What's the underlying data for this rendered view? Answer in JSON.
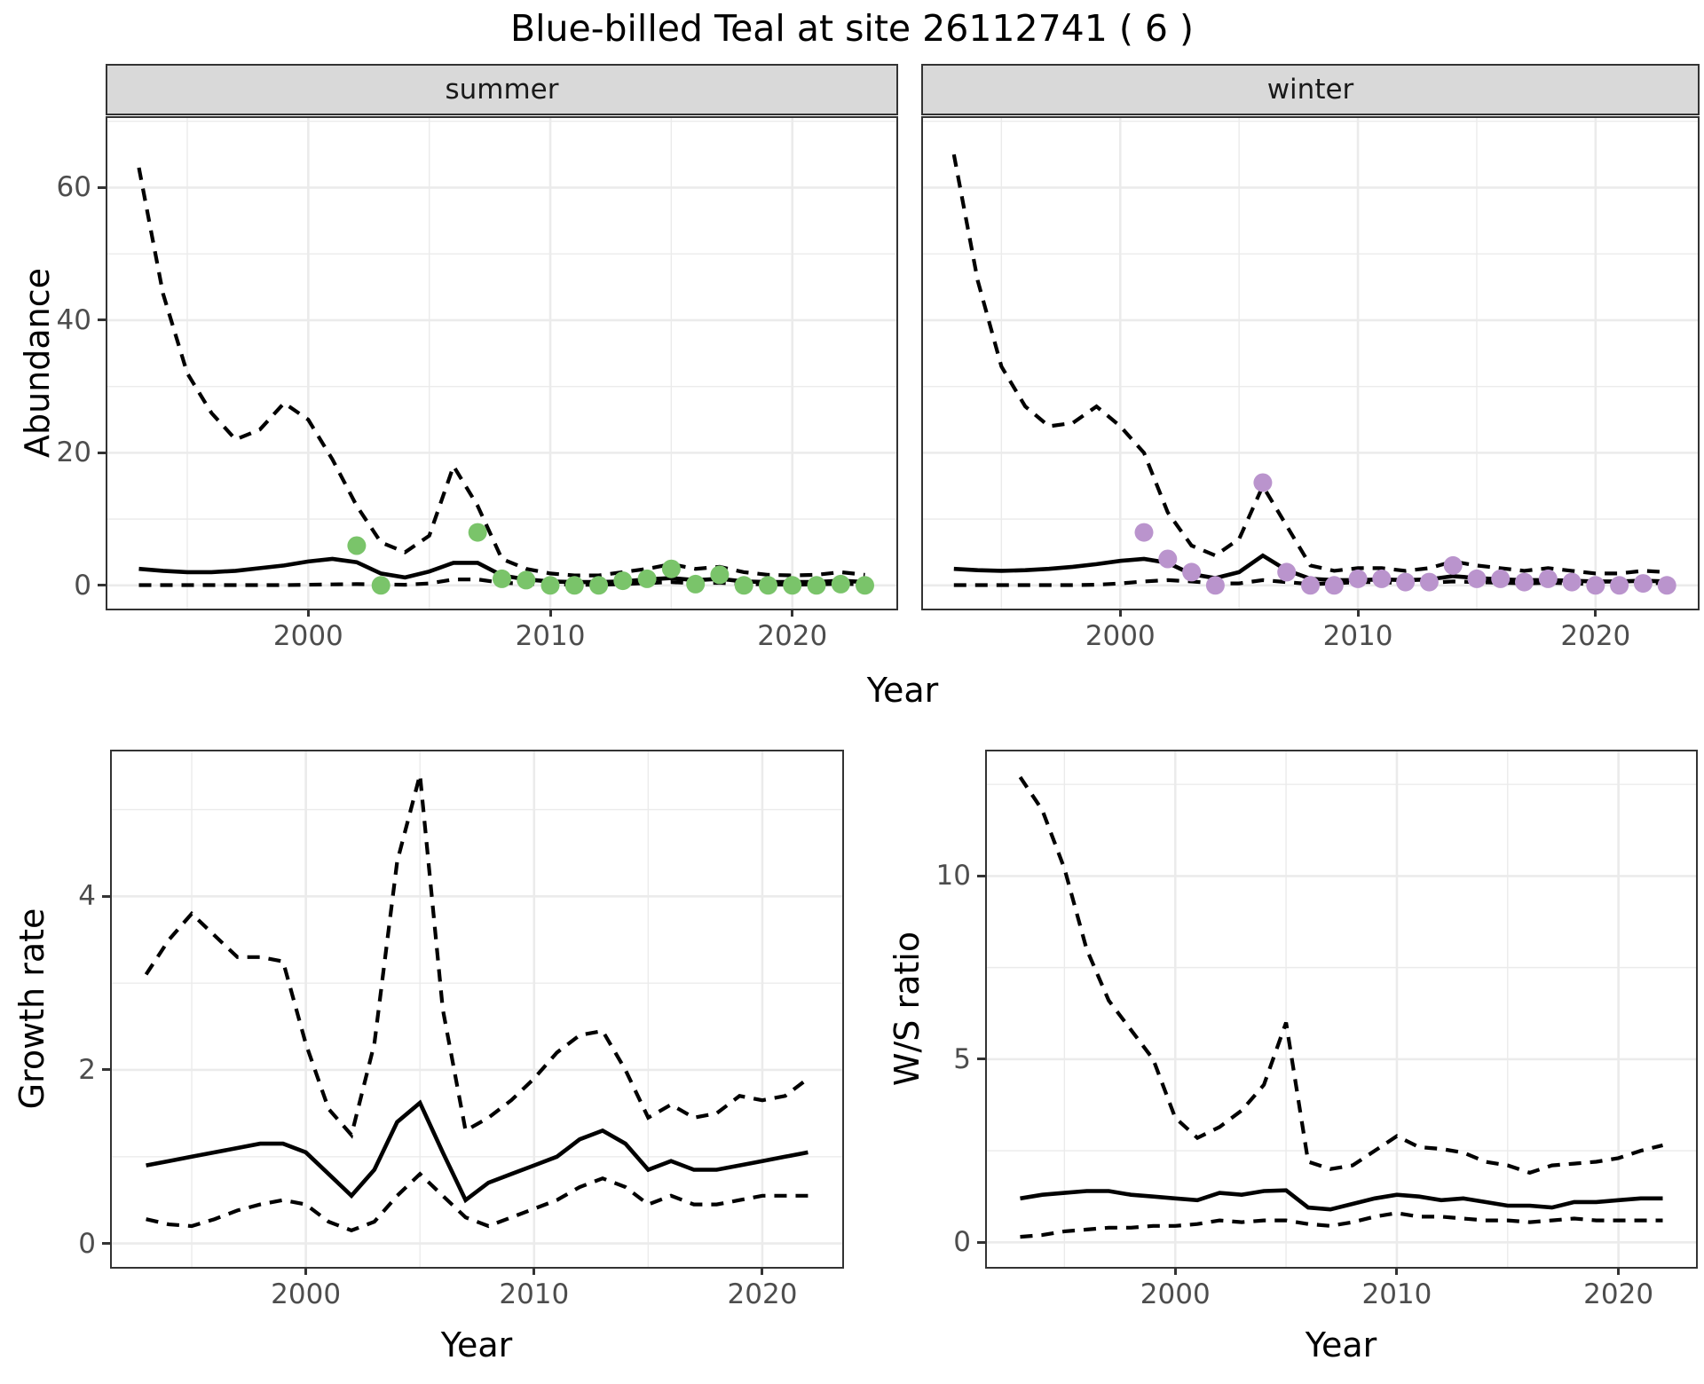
{
  "title": "Blue-billed Teal at site 26112741 ( 6 )",
  "facets": {
    "summer": "summer",
    "winter": "winter"
  },
  "axes": {
    "x": "Year",
    "y_abundance": "Abundance",
    "y_growth": "Growth rate",
    "y_ratio": "W/S ratio"
  },
  "colors": {
    "summer_point": "#7ac46a",
    "winter_point": "#ba94cd",
    "line": "#000000",
    "strip_bg": "#d9d9d9",
    "grid": "#ebebeb",
    "axis_text": "#4d4d4d",
    "panel_border": "#333333"
  },
  "chart_data": [
    {
      "panel": "summer",
      "type": "line",
      "strip": "summer",
      "xlabel": "Year",
      "ylabel": "Abundance",
      "xlim": [
        1991.7,
        2024.3
      ],
      "ylim": [
        -3.5,
        70.5
      ],
      "xticks": [
        2000,
        2010,
        2020
      ],
      "yticks": [
        0,
        20,
        40,
        60
      ],
      "xminor": [
        1995,
        2005,
        2015
      ],
      "yminor": [
        10,
        30,
        50,
        70
      ],
      "show_yticklabels": true,
      "x": [
        1993,
        1994,
        1995,
        1996,
        1997,
        1998,
        1999,
        2000,
        2001,
        2002,
        2003,
        2004,
        2005,
        2006,
        2007,
        2008,
        2009,
        2010,
        2011,
        2012,
        2013,
        2014,
        2015,
        2016,
        2017,
        2018,
        2019,
        2020,
        2021,
        2022,
        2023
      ],
      "series": [
        {
          "name": "upper_ci",
          "style": "dashed",
          "values": [
            63,
            44,
            32,
            26,
            22,
            23.5,
            27.5,
            25,
            19,
            12,
            6.5,
            5,
            7.5,
            18,
            12,
            4,
            2.5,
            1.8,
            1.5,
            1.5,
            2,
            2.5,
            3.2,
            2.5,
            2.8,
            2,
            1.6,
            1.5,
            1.6,
            2,
            1.6
          ]
        },
        {
          "name": "mean",
          "style": "solid",
          "values": [
            2.5,
            2.2,
            2.0,
            2.0,
            2.2,
            2.6,
            3.0,
            3.6,
            4.0,
            3.5,
            1.8,
            1.2,
            2.1,
            3.4,
            3.4,
            1.5,
            0.9,
            0.6,
            0.5,
            0.5,
            0.6,
            0.9,
            1.1,
            0.8,
            1.0,
            0.6,
            0.5,
            0.5,
            0.5,
            0.7,
            0.5
          ]
        },
        {
          "name": "lower_ci",
          "style": "dashed",
          "values": [
            0.05,
            0.05,
            0.05,
            0.05,
            0.05,
            0.05,
            0.05,
            0.1,
            0.15,
            0.2,
            0.15,
            0.1,
            0.3,
            0.9,
            0.9,
            0.4,
            0.25,
            0.15,
            0.1,
            0.1,
            0.2,
            0.35,
            0.5,
            0.3,
            0.4,
            0.2,
            0.15,
            0.1,
            0.15,
            0.25,
            0.15
          ]
        }
      ],
      "points": {
        "name": "observed_counts",
        "color": "#7ac46a",
        "x": [
          2002,
          2003,
          2007,
          2008,
          2009,
          2010,
          2011,
          2012,
          2013,
          2014,
          2015,
          2016,
          2017,
          2018,
          2019,
          2020,
          2021,
          2022,
          2023
        ],
        "y": [
          6,
          0,
          8,
          1,
          0.8,
          0,
          0,
          0,
          0.7,
          1,
          2.5,
          0.2,
          1.6,
          0,
          0,
          0,
          0,
          0.2,
          0
        ]
      }
    },
    {
      "panel": "winter",
      "type": "line",
      "strip": "winter",
      "xlabel": "Year",
      "ylabel": "Abundance",
      "xlim": [
        1991.7,
        2024.3
      ],
      "ylim": [
        -3.5,
        70.5
      ],
      "xticks": [
        2000,
        2010,
        2020
      ],
      "yticks": [
        0,
        20,
        40,
        60
      ],
      "xminor": [
        1995,
        2005,
        2015
      ],
      "yminor": [
        10,
        30,
        50,
        70
      ],
      "show_yticklabels": false,
      "x": [
        1993,
        1994,
        1995,
        1996,
        1997,
        1998,
        1999,
        2000,
        2001,
        2002,
        2003,
        2004,
        2005,
        2006,
        2007,
        2008,
        2009,
        2010,
        2011,
        2012,
        2013,
        2014,
        2015,
        2016,
        2017,
        2018,
        2019,
        2020,
        2021,
        2022,
        2023
      ],
      "series": [
        {
          "name": "upper_ci",
          "style": "dashed",
          "values": [
            65,
            46,
            33,
            27,
            24,
            24.5,
            27,
            24,
            20,
            11,
            6,
            4.5,
            7,
            15,
            9,
            3,
            2.2,
            2.6,
            2.6,
            2.2,
            2.6,
            3.6,
            3,
            2.6,
            2.2,
            2.6,
            2.2,
            1.8,
            1.8,
            2.2,
            2
          ]
        },
        {
          "name": "mean",
          "style": "solid",
          "values": [
            2.5,
            2.3,
            2.2,
            2.3,
            2.5,
            2.8,
            3.2,
            3.7,
            4.0,
            3.4,
            1.7,
            1.1,
            2.0,
            4.5,
            2.3,
            1.0,
            0.8,
            0.8,
            0.9,
            0.8,
            0.9,
            1.4,
            1.1,
            0.9,
            0.8,
            0.8,
            0.7,
            0.6,
            0.6,
            0.7,
            0.6
          ]
        },
        {
          "name": "lower_ci",
          "style": "dashed",
          "values": [
            0.05,
            0.05,
            0.05,
            0.05,
            0.05,
            0.05,
            0.1,
            0.3,
            0.6,
            0.8,
            0.6,
            0.3,
            0.3,
            0.8,
            0.5,
            0.2,
            0.3,
            0.5,
            0.5,
            0.3,
            0.4,
            0.6,
            0.5,
            0.4,
            0.3,
            0.4,
            0.3,
            0.2,
            0.2,
            0.4,
            0.3
          ]
        }
      ],
      "points": {
        "name": "observed_counts",
        "color": "#ba94cd",
        "x": [
          2001,
          2002,
          2003,
          2004,
          2006,
          2007,
          2008,
          2009,
          2010,
          2011,
          2012,
          2013,
          2014,
          2015,
          2016,
          2017,
          2018,
          2019,
          2020,
          2021,
          2022,
          2023
        ],
        "y": [
          8,
          4,
          2,
          0,
          15.5,
          2,
          0,
          0,
          1,
          1,
          0.5,
          0.5,
          3,
          1,
          1,
          0.5,
          1,
          0.5,
          0,
          0,
          0.3,
          0
        ]
      }
    },
    {
      "panel": "growth",
      "type": "line",
      "strip": null,
      "xlabel": "Year",
      "ylabel": "Growth rate",
      "xlim": [
        1991.5,
        2023.5
      ],
      "ylim": [
        -0.27,
        5.67
      ],
      "xticks": [
        2000,
        2010,
        2020
      ],
      "yticks": [
        0,
        2,
        4
      ],
      "xminor": [
        1995,
        2005,
        2015
      ],
      "yminor": [
        1,
        3,
        5
      ],
      "show_yticklabels": true,
      "x": [
        1993,
        1994,
        1995,
        1996,
        1997,
        1998,
        1999,
        2000,
        2001,
        2002,
        2003,
        2004,
        2005,
        2006,
        2007,
        2008,
        2009,
        2010,
        2011,
        2012,
        2013,
        2014,
        2015,
        2016,
        2017,
        2018,
        2019,
        2020,
        2021,
        2022
      ],
      "series": [
        {
          "name": "upper_ci",
          "style": "dashed",
          "values": [
            3.1,
            3.5,
            3.8,
            3.55,
            3.3,
            3.3,
            3.25,
            2.3,
            1.55,
            1.25,
            2.3,
            4.4,
            5.4,
            2.7,
            1.3,
            1.45,
            1.65,
            1.9,
            2.2,
            2.4,
            2.45,
            2.0,
            1.45,
            1.6,
            1.45,
            1.5,
            1.7,
            1.65,
            1.7,
            1.9
          ]
        },
        {
          "name": "mean",
          "style": "solid",
          "values": [
            0.9,
            0.95,
            1.0,
            1.05,
            1.1,
            1.15,
            1.15,
            1.05,
            0.8,
            0.55,
            0.85,
            1.4,
            1.62,
            1.05,
            0.5,
            0.7,
            0.8,
            0.9,
            1.0,
            1.2,
            1.3,
            1.15,
            0.85,
            0.95,
            0.85,
            0.85,
            0.9,
            0.95,
            1.0,
            1.05
          ]
        },
        {
          "name": "lower_ci",
          "style": "dashed",
          "values": [
            0.28,
            0.22,
            0.2,
            0.28,
            0.38,
            0.45,
            0.5,
            0.45,
            0.25,
            0.15,
            0.25,
            0.55,
            0.8,
            0.55,
            0.3,
            0.2,
            0.3,
            0.4,
            0.5,
            0.65,
            0.75,
            0.65,
            0.45,
            0.55,
            0.45,
            0.45,
            0.5,
            0.55,
            0.55,
            0.55
          ]
        }
      ],
      "points": null
    },
    {
      "panel": "ratio",
      "type": "line",
      "strip": null,
      "xlabel": "Year",
      "ylabel": "W/S ratio",
      "xlim": [
        1991.5,
        2023.5
      ],
      "ylim": [
        -0.67,
        13.4
      ],
      "xticks": [
        2000,
        2010,
        2020
      ],
      "yticks": [
        0,
        5,
        10
      ],
      "xminor": [
        1995,
        2005,
        2015
      ],
      "yminor": [
        2.5,
        7.5,
        12.5
      ],
      "show_yticklabels": true,
      "x": [
        1993,
        1994,
        1995,
        1996,
        1997,
        1998,
        1999,
        2000,
        2001,
        2002,
        2003,
        2004,
        2005,
        2006,
        2007,
        2008,
        2009,
        2010,
        2011,
        2012,
        2013,
        2014,
        2015,
        2016,
        2017,
        2018,
        2019,
        2020,
        2021,
        2022
      ],
      "series": [
        {
          "name": "upper_ci",
          "style": "dashed",
          "values": [
            12.7,
            11.8,
            10.2,
            8.0,
            6.6,
            5.8,
            5.0,
            3.4,
            2.85,
            3.15,
            3.6,
            4.3,
            6.0,
            2.2,
            2.0,
            2.1,
            2.5,
            2.9,
            2.6,
            2.55,
            2.45,
            2.2,
            2.1,
            1.9,
            2.1,
            2.15,
            2.2,
            2.3,
            2.5,
            2.65
          ]
        },
        {
          "name": "mean",
          "style": "solid",
          "values": [
            1.2,
            1.3,
            1.35,
            1.4,
            1.4,
            1.3,
            1.25,
            1.2,
            1.15,
            1.35,
            1.3,
            1.4,
            1.42,
            0.95,
            0.9,
            1.05,
            1.2,
            1.3,
            1.25,
            1.15,
            1.2,
            1.1,
            1.0,
            1.0,
            0.95,
            1.1,
            1.1,
            1.15,
            1.2,
            1.2
          ]
        },
        {
          "name": "lower_ci",
          "style": "dashed",
          "values": [
            0.15,
            0.2,
            0.3,
            0.35,
            0.4,
            0.4,
            0.45,
            0.45,
            0.5,
            0.6,
            0.55,
            0.6,
            0.6,
            0.5,
            0.45,
            0.55,
            0.7,
            0.8,
            0.7,
            0.7,
            0.65,
            0.6,
            0.6,
            0.55,
            0.6,
            0.65,
            0.6,
            0.6,
            0.6,
            0.6
          ]
        }
      ],
      "points": null
    }
  ]
}
